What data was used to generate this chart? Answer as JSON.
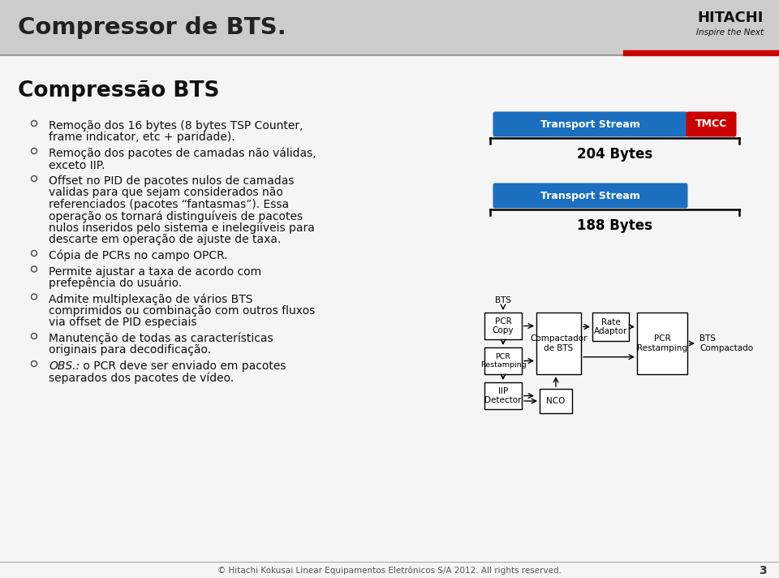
{
  "title": "Compressor de BTS.",
  "subtitle": "Compressão BTS",
  "bg_color": "#f5f5f5",
  "header_bg": "#cccccc",
  "title_color": "#222222",
  "subtitle_color": "#111111",
  "accent_red": "#cc0000",
  "blue_bar": "#1b6fbe",
  "bullets": [
    "Remoção dos 16 bytes (8 bytes TSP Counter,\nframe indicator, etc + paridade).",
    "Remoção dos pacotes de camadas não válidas,\nexceto IIP.",
    "Offset no PID de pacotes nulos de camadas\nvalidas para que sejam considerados não\nreferenciados (pacotes “fantasmas”). Essa\noperação os tornará distinguíveis de pacotes\nnulos inseridos pelo sistema e inelegiíveis para\ndescarte em operação de ajuste de taxa.",
    "Cópia de PCRs no campo OPCR.",
    "Permite ajustar a taxa de acordo com\nprefерência do usuário.",
    "Admite multiplexação de vários BTS\ncomprimidos ou combinação com outros fluxos\nvia offset de PID especiais",
    "Manutenção de todas as características\noriginais para decodificação.",
    "OBS.: o PCR deve ser enviado em pacotes\nseparados dos pacotes de vídeo."
  ],
  "footer": "© Hitachi Kokusai Linear Equipamentos Eletrônicos S/A 2012. All rights reserved.",
  "page_num": "3"
}
